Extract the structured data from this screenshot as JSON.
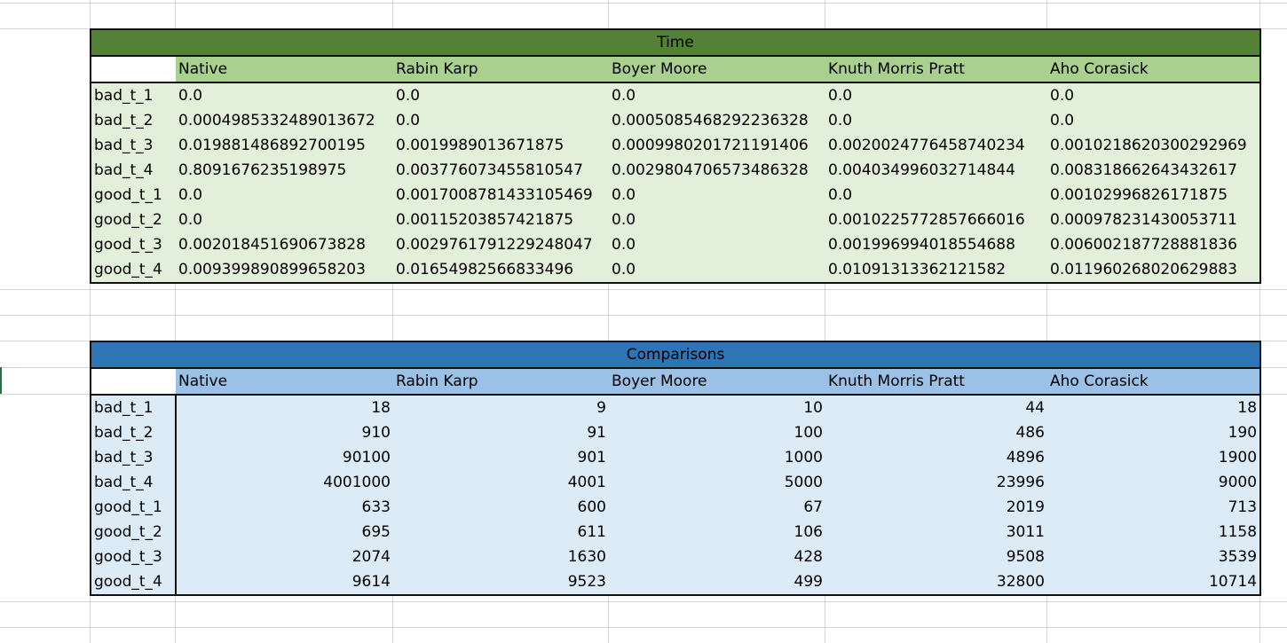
{
  "time_table": {
    "title": "Time",
    "headers": [
      "Native",
      "Rabin Karp",
      "Boyer Moore",
      "Knuth Morris Pratt",
      "Aho Corasick"
    ],
    "rows": [
      {
        "label": "bad_t_1",
        "values": [
          "0.0",
          "0.0",
          "0.0",
          "0.0",
          "0.0"
        ]
      },
      {
        "label": "bad_t_2",
        "values": [
          "0.0004985332489013672",
          "0.0",
          "0.0005085468292236328",
          "0.0",
          "0.0"
        ]
      },
      {
        "label": "bad_t_3",
        "values": [
          "0.019881486892700195",
          "0.0019989013671875",
          "0.0009980201721191406",
          "0.0020024776458740234",
          "0.0010218620300292969"
        ]
      },
      {
        "label": "bad_t_4",
        "values": [
          "0.8091676235198975",
          "0.003776073455810547",
          "0.0029804706573486328",
          "0.004034996032714844",
          "0.008318662643432617"
        ]
      },
      {
        "label": "good_t_1",
        "values": [
          "0.0",
          "0.0017008781433105469",
          "0.0",
          "0.0",
          "0.00102996826171875"
        ]
      },
      {
        "label": "good_t_2",
        "values": [
          "0.0",
          "0.00115203857421875",
          "0.0",
          "0.0010225772857666016",
          "0.000978231430053711"
        ]
      },
      {
        "label": "good_t_3",
        "values": [
          "0.002018451690673828",
          "0.0029761791229248047",
          "0.0",
          "0.001996994018554688",
          "0.006002187728881836"
        ]
      },
      {
        "label": "good_t_4",
        "values": [
          "0.009399890899658203",
          "0.01654982566833496",
          "0.0",
          "0.01091313362121582",
          "0.011960268020629883"
        ]
      }
    ]
  },
  "comp_table": {
    "title": "Comparisons",
    "headers": [
      "Native",
      "Rabin Karp",
      "Boyer Moore",
      "Knuth Morris Pratt",
      "Aho Corasick"
    ],
    "rows": [
      {
        "label": "bad_t_1",
        "values": [
          "18",
          "9",
          "10",
          "44",
          "18"
        ]
      },
      {
        "label": "bad_t_2",
        "values": [
          "910",
          "91",
          "100",
          "486",
          "190"
        ]
      },
      {
        "label": "bad_t_3",
        "values": [
          "90100",
          "901",
          "1000",
          "4896",
          "1900"
        ]
      },
      {
        "label": "bad_t_4",
        "values": [
          "4001000",
          "4001",
          "5000",
          "23996",
          "9000"
        ]
      },
      {
        "label": "good_t_1",
        "values": [
          "633",
          "600",
          "67",
          "2019",
          "713"
        ]
      },
      {
        "label": "good_t_2",
        "values": [
          "695",
          "611",
          "106",
          "3011",
          "1158"
        ]
      },
      {
        "label": "good_t_3",
        "values": [
          "2074",
          "1630",
          "428",
          "9508",
          "3539"
        ]
      },
      {
        "label": "good_t_4",
        "values": [
          "9614",
          "9523",
          "499",
          "32800",
          "10714"
        ]
      }
    ]
  }
}
